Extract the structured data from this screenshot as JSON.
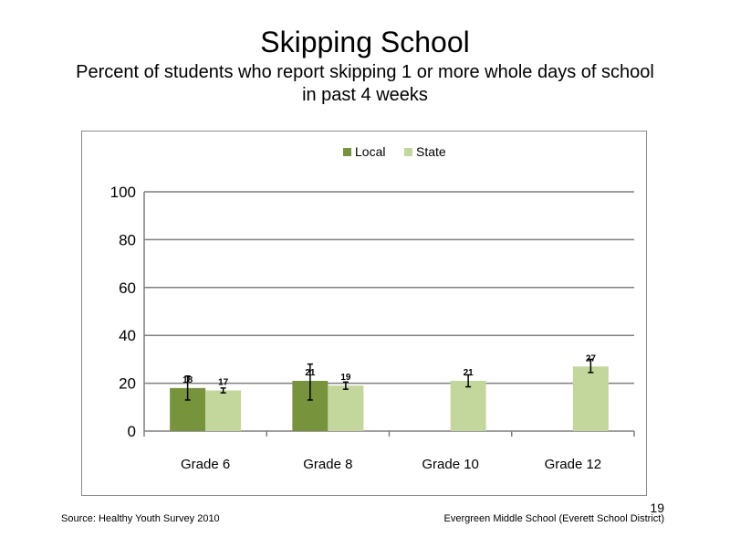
{
  "title": "Skipping School",
  "subtitle": "Percent of students who report skipping 1 or more whole days of school in past 4 weeks",
  "footer": {
    "source": "Source: Healthy Youth Survey 2010",
    "school": "Evergreen Middle School (Everett School District)",
    "page_number": "19"
  },
  "chart_data": {
    "type": "bar",
    "categories": [
      "Grade 6",
      "Grade 8",
      "Grade 10",
      "Grade 12"
    ],
    "series": [
      {
        "name": "Local",
        "color": "#77933c",
        "values": [
          18,
          21,
          null,
          null
        ],
        "error": [
          [
            13,
            23
          ],
          [
            13,
            28
          ],
          null,
          null
        ]
      },
      {
        "name": "State",
        "color": "#c3d69b",
        "values": [
          17,
          19,
          21,
          27
        ],
        "error": [
          [
            16,
            18
          ],
          [
            17.5,
            20.5
          ],
          [
            18.5,
            23.5
          ],
          [
            24.5,
            30
          ]
        ]
      }
    ],
    "ylim": [
      0,
      100
    ],
    "yticks": [
      0,
      20,
      40,
      60,
      80,
      100
    ],
    "grid": true,
    "legend_position": "top-center"
  }
}
